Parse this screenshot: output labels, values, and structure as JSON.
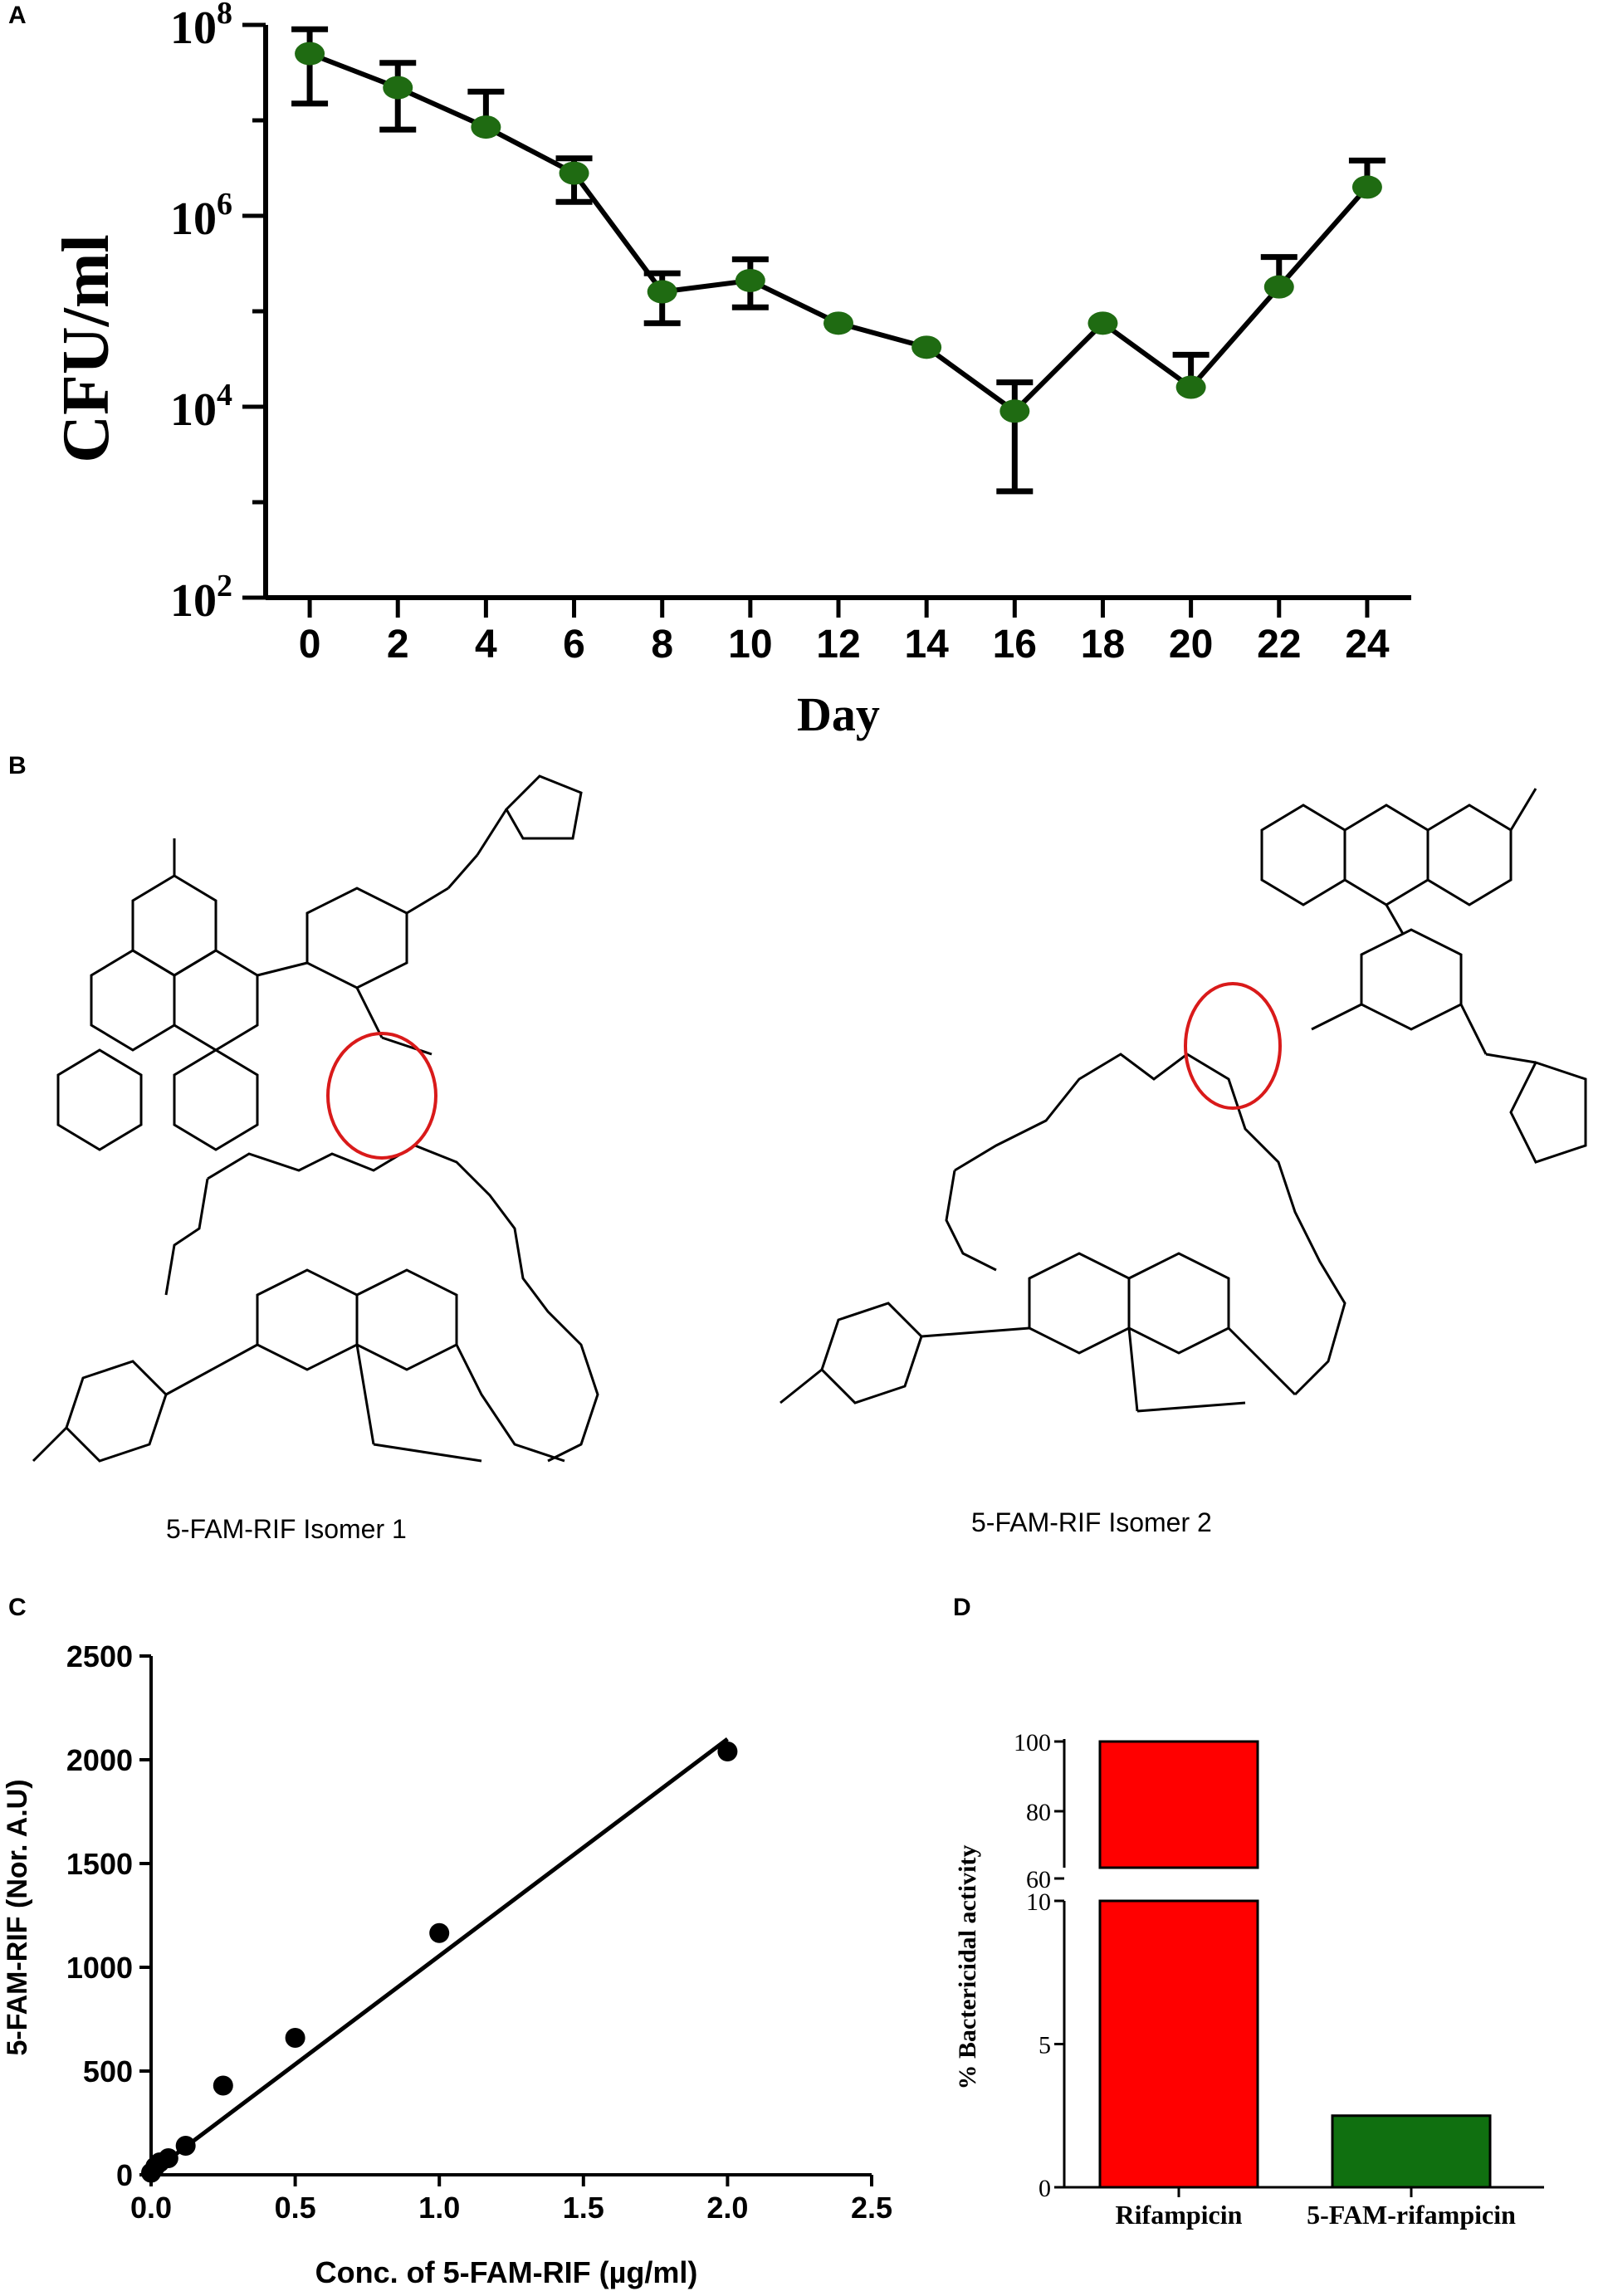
{
  "panels": {
    "a": "A",
    "b": "B",
    "c": "C",
    "d": "D"
  },
  "chart_data": [
    {
      "panel": "A",
      "type": "line",
      "xlabel": "Day",
      "ylabel": "CFU/ml",
      "yscale": "log",
      "ylim": [
        100,
        100000000
      ],
      "xlim": [
        -1,
        25
      ],
      "xticks": [
        "0",
        "2",
        "4",
        "6",
        "8",
        "10",
        "12",
        "14",
        "16",
        "18",
        "20",
        "22",
        "24"
      ],
      "yticks": [
        {
          "base": "10",
          "exp": "8",
          "value": 100000000
        },
        {
          "base": "10",
          "exp": "6",
          "value": 1000000
        },
        {
          "base": "10",
          "exp": "4",
          "value": 10000
        },
        {
          "base": "10",
          "exp": "2",
          "value": 100
        }
      ],
      "marker_color": "#1f6b12",
      "series": [
        {
          "x": [
            0,
            2,
            4,
            6,
            8,
            10,
            12,
            14,
            16,
            18,
            20,
            22,
            24
          ],
          "y": [
            50000000,
            22000000,
            8500000,
            2800000,
            160000,
            210000,
            75000,
            42000,
            9000,
            75000,
            16000,
            180000,
            2000000
          ],
          "err_low": [
            15000000,
            8000000,
            null,
            1400000,
            75000,
            110000,
            null,
            null,
            1300,
            null,
            null,
            null,
            null
          ],
          "err_high": [
            90000000,
            40000000,
            20000000,
            4000000,
            250000,
            350000,
            null,
            null,
            18000,
            null,
            35000,
            370000,
            3800000
          ]
        }
      ]
    },
    {
      "panel": "C",
      "type": "scatter",
      "xlabel": "Conc. of 5-FAM-RIF  (µg/ml)",
      "ylabel": "5-FAM-RIF (Nor. A.U)",
      "xlim": [
        0,
        2.5
      ],
      "ylim": [
        0,
        2500
      ],
      "xticks": [
        "0.0",
        "0.5",
        "1.0",
        "1.5",
        "2.0",
        "2.5"
      ],
      "yticks": [
        "0",
        "500",
        "1000",
        "1500",
        "2000",
        "2500"
      ],
      "points": {
        "x": [
          0.0,
          0.015,
          0.03,
          0.06,
          0.12,
          0.25,
          0.5,
          1.0,
          2.0
        ],
        "y": [
          10,
          40,
          60,
          80,
          140,
          430,
          660,
          1165,
          2040
        ]
      },
      "fit_line": {
        "x": [
          0.0,
          2.0
        ],
        "y": [
          10,
          2100
        ]
      }
    },
    {
      "panel": "D",
      "type": "bar",
      "ylabel": "% Bactericidal activity",
      "categories": [
        "Rifampicin",
        "5-FAM-rifampicin"
      ],
      "values": [
        100,
        2.5
      ],
      "colors": [
        "#ff0000",
        "#107010"
      ],
      "broken_axis": {
        "lower": {
          "range": [
            0,
            10
          ],
          "ticks": [
            "0",
            "5",
            "10"
          ]
        },
        "upper": {
          "range": [
            50,
            100
          ],
          "ticks": [
            "60",
            "80",
            "100"
          ]
        }
      }
    }
  ],
  "structures": {
    "isomer1_caption": "5-FAM-RIF Isomer 1",
    "isomer2_caption": "5-FAM-RIF Isomer 2"
  }
}
